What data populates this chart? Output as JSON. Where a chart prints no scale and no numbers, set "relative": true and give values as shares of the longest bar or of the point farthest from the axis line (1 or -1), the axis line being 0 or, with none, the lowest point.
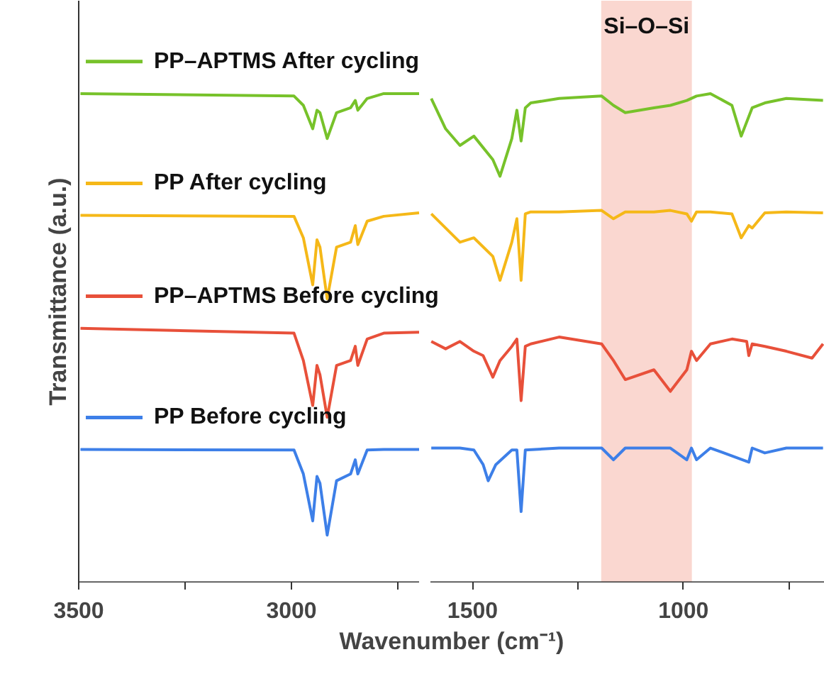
{
  "chart_data": [
    {
      "type": "line",
      "relative": true,
      "ylabel": "Transmittance (a.u.)",
      "legend": "top left",
      "xlim": [
        3500,
        2700
      ],
      "xticks": [
        3500,
        {
          "value": 3250,
          "label": null
        },
        3000,
        {
          "value": 2750,
          "label": null
        }
      ],
      "tick_labels": "x",
      "series": [
        {
          "name": "PP–APTMS After cycling",
          "color": "#77c22a",
          "x": [
            3496,
            2994,
            2972,
            2950,
            2940,
            2933,
            2916,
            2894,
            2861,
            2850,
            2844,
            2822,
            2783,
            2700
          ],
          "values": [
            1.0,
            0.995,
            0.976,
            0.928,
            0.966,
            0.961,
            0.908,
            0.961,
            0.971,
            0.986,
            0.966,
            0.99,
            1.0,
            1.0
          ]
        },
        {
          "name": "PP After cycling",
          "color": "#f5b818",
          "x": [
            3496,
            2994,
            2972,
            2950,
            2940,
            2933,
            2916,
            2894,
            2861,
            2850,
            2844,
            2822,
            2783,
            2700
          ],
          "values": [
            0.751,
            0.749,
            0.705,
            0.609,
            0.701,
            0.686,
            0.58,
            0.686,
            0.696,
            0.73,
            0.691,
            0.739,
            0.749,
            0.756
          ]
        },
        {
          "name": "PP–APTMS Before cycling",
          "color": "#e8503a",
          "x": [
            3496,
            2994,
            2972,
            2950,
            2940,
            2933,
            2916,
            2894,
            2861,
            2850,
            2844,
            2822,
            2783,
            2700
          ],
          "values": [
            0.52,
            0.51,
            0.454,
            0.362,
            0.444,
            0.425,
            0.338,
            0.444,
            0.454,
            0.483,
            0.444,
            0.498,
            0.51,
            0.512
          ]
        },
        {
          "name": "PP Before cycling",
          "color": "#3d7fe8",
          "x": [
            3496,
            2994,
            2972,
            2950,
            2940,
            2933,
            2916,
            2894,
            2861,
            2850,
            2844,
            2822,
            2783,
            2700
          ],
          "values": [
            0.272,
            0.271,
            0.222,
            0.126,
            0.217,
            0.203,
            0.097,
            0.208,
            0.222,
            0.251,
            0.222,
            0.271,
            0.272,
            0.272
          ]
        }
      ]
    },
    {
      "type": "line",
      "relative": true,
      "xlabel": "Wavenumber (cm⁻¹)",
      "xlim": [
        1600,
        665
      ],
      "xticks": [
        1500,
        {
          "value": 1250,
          "label": null
        },
        1000,
        {
          "value": 750,
          "label": null
        }
      ],
      "tick_labels": "x",
      "bands": [
        {
          "axis": "x",
          "from": 1195,
          "to": 980,
          "label": "Si–O–Si",
          "color": "#f9cdc4"
        }
      ],
      "series": [
        {
          "color": "#77c22a",
          "x": [
            1598,
            1564,
            1530,
            1497,
            1452,
            1435,
            1407,
            1395,
            1385,
            1375,
            1362,
            1295,
            1194,
            1166,
            1138,
            1070,
            1031,
            992,
            969,
            936,
            885,
            863,
            837,
            807,
            756,
            669
          ],
          "values": [
            0.99,
            0.928,
            0.894,
            0.913,
            0.865,
            0.831,
            0.908,
            0.966,
            0.903,
            0.971,
            0.981,
            0.99,
            0.995,
            0.976,
            0.961,
            0.971,
            0.976,
            0.986,
            0.995,
            1.0,
            0.976,
            0.913,
            0.971,
            0.981,
            0.99,
            0.986
          ]
        },
        {
          "color": "#f5b818",
          "x": [
            1598,
            1530,
            1497,
            1452,
            1435,
            1407,
            1395,
            1385,
            1375,
            1362,
            1295,
            1194,
            1166,
            1138,
            1070,
            1031,
            992,
            981,
            969,
            936,
            885,
            863,
            845,
            837,
            807,
            756,
            669
          ],
          "values": [
            0.754,
            0.696,
            0.705,
            0.667,
            0.618,
            0.696,
            0.744,
            0.618,
            0.754,
            0.758,
            0.758,
            0.761,
            0.744,
            0.758,
            0.758,
            0.761,
            0.754,
            0.739,
            0.758,
            0.758,
            0.754,
            0.705,
            0.73,
            0.725,
            0.756,
            0.758,
            0.756
          ]
        },
        {
          "color": "#e8503a",
          "x": [
            1598,
            1564,
            1530,
            1497,
            1475,
            1452,
            1435,
            1407,
            1395,
            1385,
            1375,
            1362,
            1295,
            1194,
            1166,
            1138,
            1070,
            1031,
            992,
            981,
            969,
            936,
            885,
            850,
            845,
            837,
            807,
            756,
            695,
            669
          ],
          "values": [
            0.493,
            0.478,
            0.493,
            0.473,
            0.464,
            0.42,
            0.454,
            0.483,
            0.498,
            0.372,
            0.483,
            0.488,
            0.502,
            0.488,
            0.454,
            0.415,
            0.435,
            0.391,
            0.435,
            0.473,
            0.454,
            0.488,
            0.498,
            0.493,
            0.464,
            0.488,
            0.483,
            0.473,
            0.459,
            0.488
          ]
        },
        {
          "color": "#3d7fe8",
          "x": [
            1598,
            1530,
            1497,
            1475,
            1463,
            1445,
            1407,
            1395,
            1385,
            1375,
            1295,
            1194,
            1166,
            1138,
            1031,
            992,
            981,
            969,
            936,
            845,
            837,
            807,
            756,
            669
          ],
          "values": [
            0.275,
            0.275,
            0.271,
            0.241,
            0.208,
            0.241,
            0.271,
            0.271,
            0.145,
            0.271,
            0.275,
            0.275,
            0.251,
            0.275,
            0.275,
            0.251,
            0.275,
            0.251,
            0.275,
            0.246,
            0.275,
            0.265,
            0.275,
            0.275
          ]
        }
      ]
    }
  ]
}
